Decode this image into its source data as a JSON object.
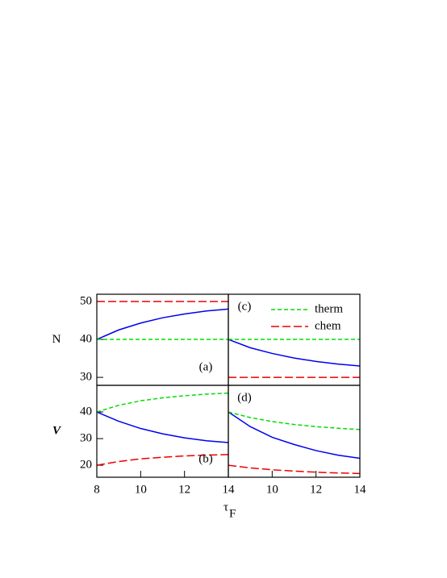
{
  "chart_data": [
    {
      "type": "line",
      "label": "(a)",
      "ylabel": "N",
      "x": [
        8,
        9,
        10,
        11,
        12,
        13,
        14
      ],
      "xlim": [
        8,
        14
      ],
      "ylim": [
        27.9,
        51.9
      ],
      "yticks": [
        30,
        40,
        50
      ],
      "series": [
        {
          "color": "#0000ee",
          "linestyle": "solid",
          "values": [
            40,
            42.5,
            44.3,
            45.7,
            46.7,
            47.5,
            48.0
          ]
        },
        {
          "color": "#00dd00",
          "linestyle": "short-dash",
          "values": [
            40,
            40,
            40,
            40,
            40,
            40,
            40
          ]
        },
        {
          "color": "#ee0000",
          "linestyle": "long-dash",
          "values": [
            50,
            50,
            50,
            50,
            50,
            50,
            50
          ]
        }
      ]
    },
    {
      "type": "line",
      "label": "(c)",
      "x": [
        8,
        9,
        10,
        11,
        12,
        13,
        14
      ],
      "xlim": [
        8,
        14
      ],
      "ylim": [
        27.9,
        51.9
      ],
      "series": [
        {
          "color": "#0000ee",
          "linestyle": "solid",
          "values": [
            40,
            37.8,
            36.3,
            35.1,
            34.2,
            33.5,
            33.0
          ]
        },
        {
          "name": "therm",
          "color": "#00dd00",
          "linestyle": "short-dash",
          "values": [
            40,
            40,
            40,
            40,
            40,
            40,
            40
          ]
        },
        {
          "name": "chem",
          "color": "#ee0000",
          "linestyle": "long-dash",
          "values": [
            30,
            30,
            30,
            30,
            30,
            30,
            30
          ]
        }
      ]
    },
    {
      "type": "line",
      "label": "(b)",
      "ylabel": "V",
      "xlabel": "τ",
      "xlabel_subscript": "F",
      "x": [
        8,
        9,
        10,
        11,
        12,
        13,
        14
      ],
      "xlim": [
        8,
        14
      ],
      "xticks": [
        8,
        10,
        12,
        14
      ],
      "ylim": [
        15.5,
        50
      ],
      "yticks": [
        20,
        30,
        40
      ],
      "series": [
        {
          "color": "#0000ee",
          "linestyle": "solid",
          "values": [
            40,
            36.5,
            33.8,
            31.8,
            30.3,
            29.2,
            28.5
          ]
        },
        {
          "color": "#00dd00",
          "linestyle": "short-dash",
          "values": [
            40,
            42.5,
            44.2,
            45.3,
            46.1,
            46.7,
            47.1
          ]
        },
        {
          "color": "#ee0000",
          "linestyle": "long-dash",
          "values": [
            20,
            21.4,
            22.4,
            23.0,
            23.5,
            23.8,
            24.0
          ]
        }
      ]
    },
    {
      "type": "line",
      "label": "(d)",
      "x": [
        8,
        9,
        10,
        11,
        12,
        13,
        14
      ],
      "xlim": [
        8,
        14
      ],
      "xticks": [
        10,
        12,
        14
      ],
      "ylim": [
        15.5,
        50
      ],
      "series": [
        {
          "color": "#0000ee",
          "linestyle": "solid",
          "values": [
            40,
            34.5,
            30.5,
            27.8,
            25.5,
            23.8,
            22.6
          ]
        },
        {
          "color": "#00dd00",
          "linestyle": "short-dash",
          "values": [
            40,
            37.9,
            36.4,
            35.3,
            34.5,
            33.9,
            33.4
          ]
        },
        {
          "color": "#ee0000",
          "linestyle": "long-dash",
          "values": [
            20,
            19.0,
            18.3,
            17.8,
            17.4,
            17.1,
            16.9
          ]
        }
      ]
    }
  ]
}
